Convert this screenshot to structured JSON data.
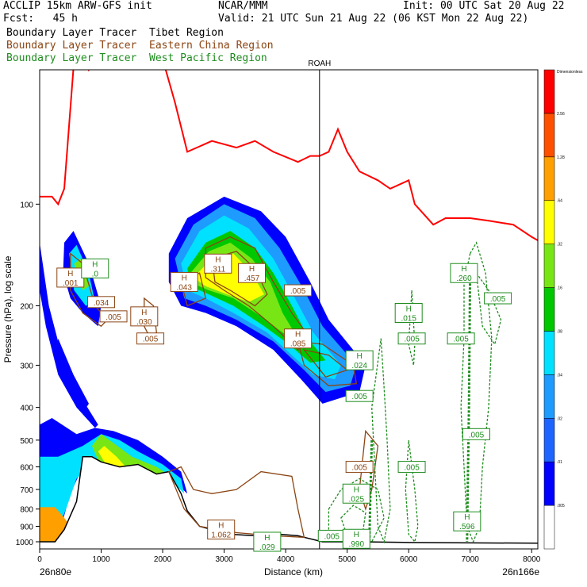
{
  "header": {
    "model": "ACCLIP 15km ARW-GFS init",
    "org": "NCAR/MMM",
    "init": "Init: 00 UTC Sat 20 Aug 22",
    "fcst": "Fcst:   45 h",
    "valid": "Valid: 21 UTC Sun 21 Aug 22 (06 KST Mon 22 Aug 22)",
    "tracers": [
      {
        "text": "Boundary Layer Tracer  Tibet Region",
        "color": "#000000"
      },
      {
        "text": "Boundary Layer Tracer  Eastern China Region",
        "color": "#8b4513"
      },
      {
        "text": "Boundary Layer Tracer  West Pacific Region",
        "color": "#1e8c1e"
      }
    ]
  },
  "chart_data": {
    "type": "cross-section",
    "xlabel": "Distance (km)",
    "ylabel": "Pressure (hPa), log scale",
    "x_ticks": [
      0,
      1000,
      2000,
      3000,
      4000,
      5000,
      6000,
      7000,
      8000
    ],
    "y_ticks": [
      100,
      200,
      300,
      400,
      500,
      600,
      700,
      800,
      900,
      1000
    ],
    "y_scale": "log",
    "xlim": [
      0,
      8100
    ],
    "ylim": [
      1050,
      40
    ],
    "left_endpoint": "26n80e",
    "right_endpoint": "26n166e",
    "vertical_marker": {
      "label": "ROAH",
      "x": 4550
    },
    "colorbar": {
      "title": "Dimensionless",
      "labels": [
        ".005",
        ".01",
        ".02",
        ".04",
        ".08",
        ".16",
        ".32",
        ".64",
        "1.28",
        "2.56"
      ],
      "colors": [
        "#ffffff",
        "#0000ff",
        "#1e64ff",
        "#1e9bff",
        "#00e1ff",
        "#00c800",
        "#78e614",
        "#ffff00",
        "#ffa000",
        "#ff5000",
        "#ff0000"
      ]
    },
    "tropopause_color": "#ff0000",
    "labels": [
      {
        "h": "H",
        "v": ".001",
        "x": 500,
        "p": 165,
        "color": "#8b4513"
      },
      {
        "h": "H",
        "v": ".0",
        "x": 900,
        "p": 155,
        "color": "#1e8c1e"
      },
      {
        "h": "",
        "v": ".034",
        "x": 1000,
        "p": 195,
        "color": "#8b4513"
      },
      {
        "h": "",
        "v": ".005",
        "x": 1200,
        "p": 215,
        "color": "#8b4513"
      },
      {
        "h": "H",
        "v": ".030",
        "x": 1700,
        "p": 215,
        "color": "#8b4513"
      },
      {
        "h": "",
        "v": ".005",
        "x": 1800,
        "p": 250,
        "color": "#8b4513"
      },
      {
        "h": "H",
        "v": ".043",
        "x": 2350,
        "p": 170,
        "color": "#8b4513"
      },
      {
        "h": "H",
        "v": ".311",
        "x": 2900,
        "p": 150,
        "color": "#8b4513"
      },
      {
        "h": "H",
        "v": ".457",
        "x": 3450,
        "p": 160,
        "color": "#8b4513"
      },
      {
        "h": "",
        "v": ".005",
        "x": 4200,
        "p": 180,
        "color": "#8b4513"
      },
      {
        "h": "H",
        "v": ".085",
        "x": 4200,
        "p": 250,
        "color": "#8b4513"
      },
      {
        "h": "H",
        "v": ".024",
        "x": 5200,
        "p": 290,
        "color": "#1e8c1e"
      },
      {
        "h": "",
        "v": ".005",
        "x": 5200,
        "p": 370,
        "color": "#1e8c1e"
      },
      {
        "h": "H",
        "v": ".015",
        "x": 6000,
        "p": 210,
        "color": "#1e8c1e"
      },
      {
        "h": "",
        "v": ".005",
        "x": 6050,
        "p": 250,
        "color": "#1e8c1e"
      },
      {
        "h": "H",
        "v": ".260",
        "x": 6900,
        "p": 160,
        "color": "#1e8c1e"
      },
      {
        "h": "",
        "v": ".005",
        "x": 7450,
        "p": 190,
        "color": "#1e8c1e"
      },
      {
        "h": "",
        "v": ".005",
        "x": 6850,
        "p": 250,
        "color": "#1e8c1e"
      },
      {
        "h": "",
        "v": ".005",
        "x": 7100,
        "p": 480,
        "color": "#1e8c1e"
      },
      {
        "h": "",
        "v": ".005",
        "x": 5200,
        "p": 600,
        "color": "#8b4513"
      },
      {
        "h": "",
        "v": ".005",
        "x": 6050,
        "p": 600,
        "color": "#1e8c1e"
      },
      {
        "h": "H",
        "v": ".025",
        "x": 5150,
        "p": 720,
        "color": "#1e8c1e"
      },
      {
        "h": "H",
        "v": "1.062",
        "x": 2950,
        "p": 920,
        "color": "#8b4513"
      },
      {
        "h": "H",
        "v": ".029",
        "x": 3700,
        "p": 1000,
        "color": "#1e8c1e"
      },
      {
        "h": "",
        "v": ".005",
        "x": 4750,
        "p": 960,
        "color": "#1e8c1e"
      },
      {
        "h": "H",
        "v": ".990",
        "x": 5150,
        "p": 980,
        "color": "#1e8c1e"
      },
      {
        "h": "H",
        "v": ".596",
        "x": 6950,
        "p": 870,
        "color": "#1e8c1e"
      }
    ]
  }
}
